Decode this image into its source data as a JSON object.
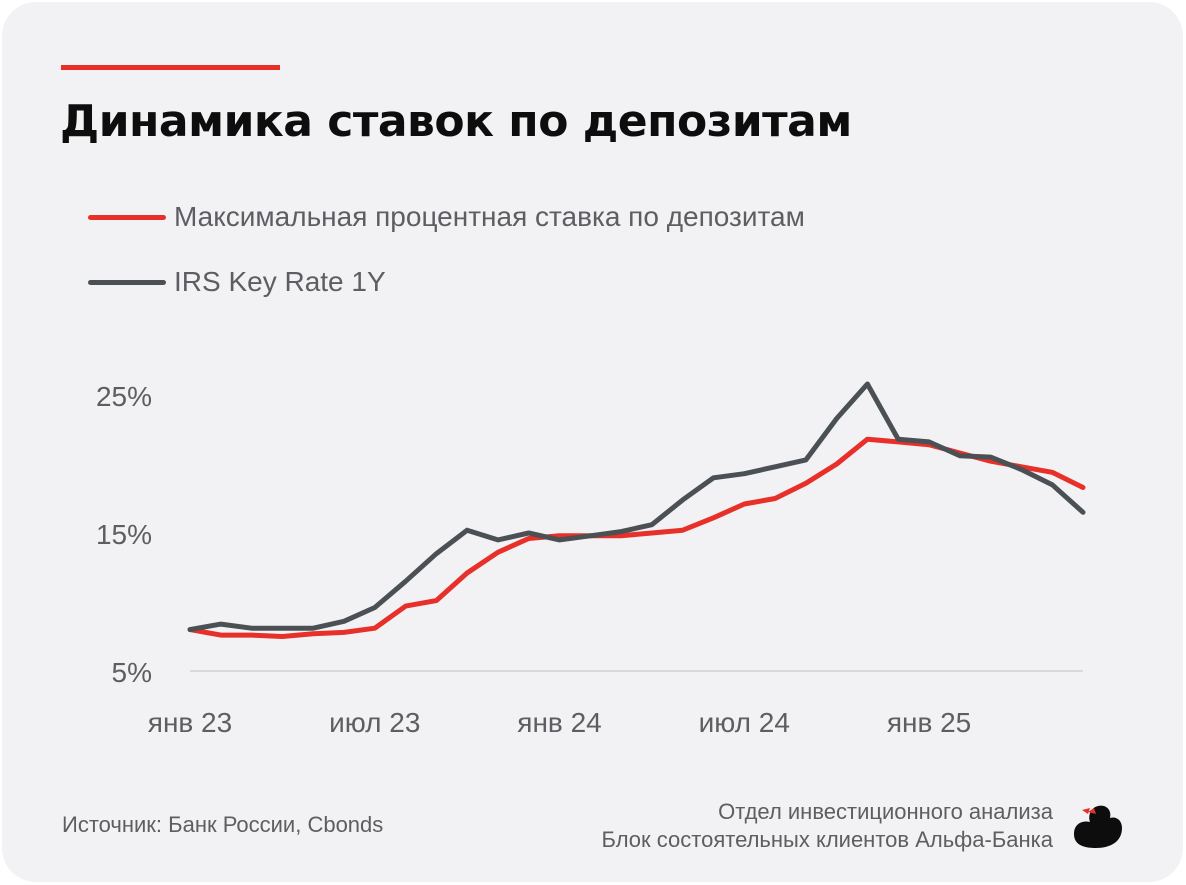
{
  "header": {
    "title": "Динамика ставок по депозитам"
  },
  "legend": [
    {
      "label": "Максимальная процентная ставка по депозитам",
      "color": "#e8302a"
    },
    {
      "label": "IRS Key Rate 1Y",
      "color": "#4b5054"
    }
  ],
  "footer": {
    "source": "Источник: Банк России, Cbonds",
    "org_line1": "Отдел инвестиционного анализа",
    "org_line2": "Блок состоятельных клиентов Альфа-Банка"
  },
  "colors": {
    "accent": "#e8302a",
    "secondary": "#4b5054",
    "text": "#5e5e62",
    "background": "#f2f2f4"
  },
  "icons": {
    "logo": "duck-icon"
  },
  "chart_data": {
    "type": "line",
    "x": [
      "янв 23",
      "фев 23",
      "мар 23",
      "апр 23",
      "май 23",
      "июн 23",
      "июл 23",
      "авг 23",
      "сен 23",
      "окт 23",
      "ноя 23",
      "дек 23",
      "янв 24",
      "фев 24",
      "мар 24",
      "апр 24",
      "май 24",
      "июн 24",
      "июл 24",
      "авг 24",
      "сен 24",
      "окт 24",
      "ноя 24",
      "дек 24",
      "янв 25",
      "фев 25",
      "мар 25",
      "апр 25",
      "май 25",
      "июн 25"
    ],
    "x_tick_labels": [
      "янв 23",
      "июл 23",
      "янв 24",
      "июл 24",
      "янв 25"
    ],
    "y_tick_labels": [
      "25%",
      "15%",
      "5%"
    ],
    "y_ticks": [
      25,
      15,
      5
    ],
    "ylim": [
      5,
      25
    ],
    "series": [
      {
        "name": "Максимальная процентная ставка по депозитам",
        "color": "#e8302a",
        "values": [
          8.0,
          7.6,
          7.6,
          7.5,
          7.7,
          7.8,
          8.1,
          9.7,
          10.1,
          12.1,
          13.6,
          14.6,
          14.8,
          14.8,
          14.8,
          15.0,
          15.2,
          16.1,
          17.1,
          17.5,
          18.6,
          20.0,
          21.8,
          21.6,
          21.4,
          20.8,
          20.2,
          19.8,
          19.4,
          18.3
        ]
      },
      {
        "name": "IRS Key Rate 1Y",
        "color": "#4b5054",
        "values": [
          8.0,
          8.4,
          8.1,
          8.1,
          8.1,
          8.6,
          9.6,
          11.5,
          13.5,
          15.2,
          14.5,
          15.0,
          14.5,
          14.8,
          15.1,
          15.6,
          17.4,
          19.0,
          19.3,
          19.8,
          20.3,
          23.3,
          25.8,
          21.8,
          21.6,
          20.6,
          20.5,
          19.6,
          18.5,
          16.5
        ]
      }
    ]
  }
}
